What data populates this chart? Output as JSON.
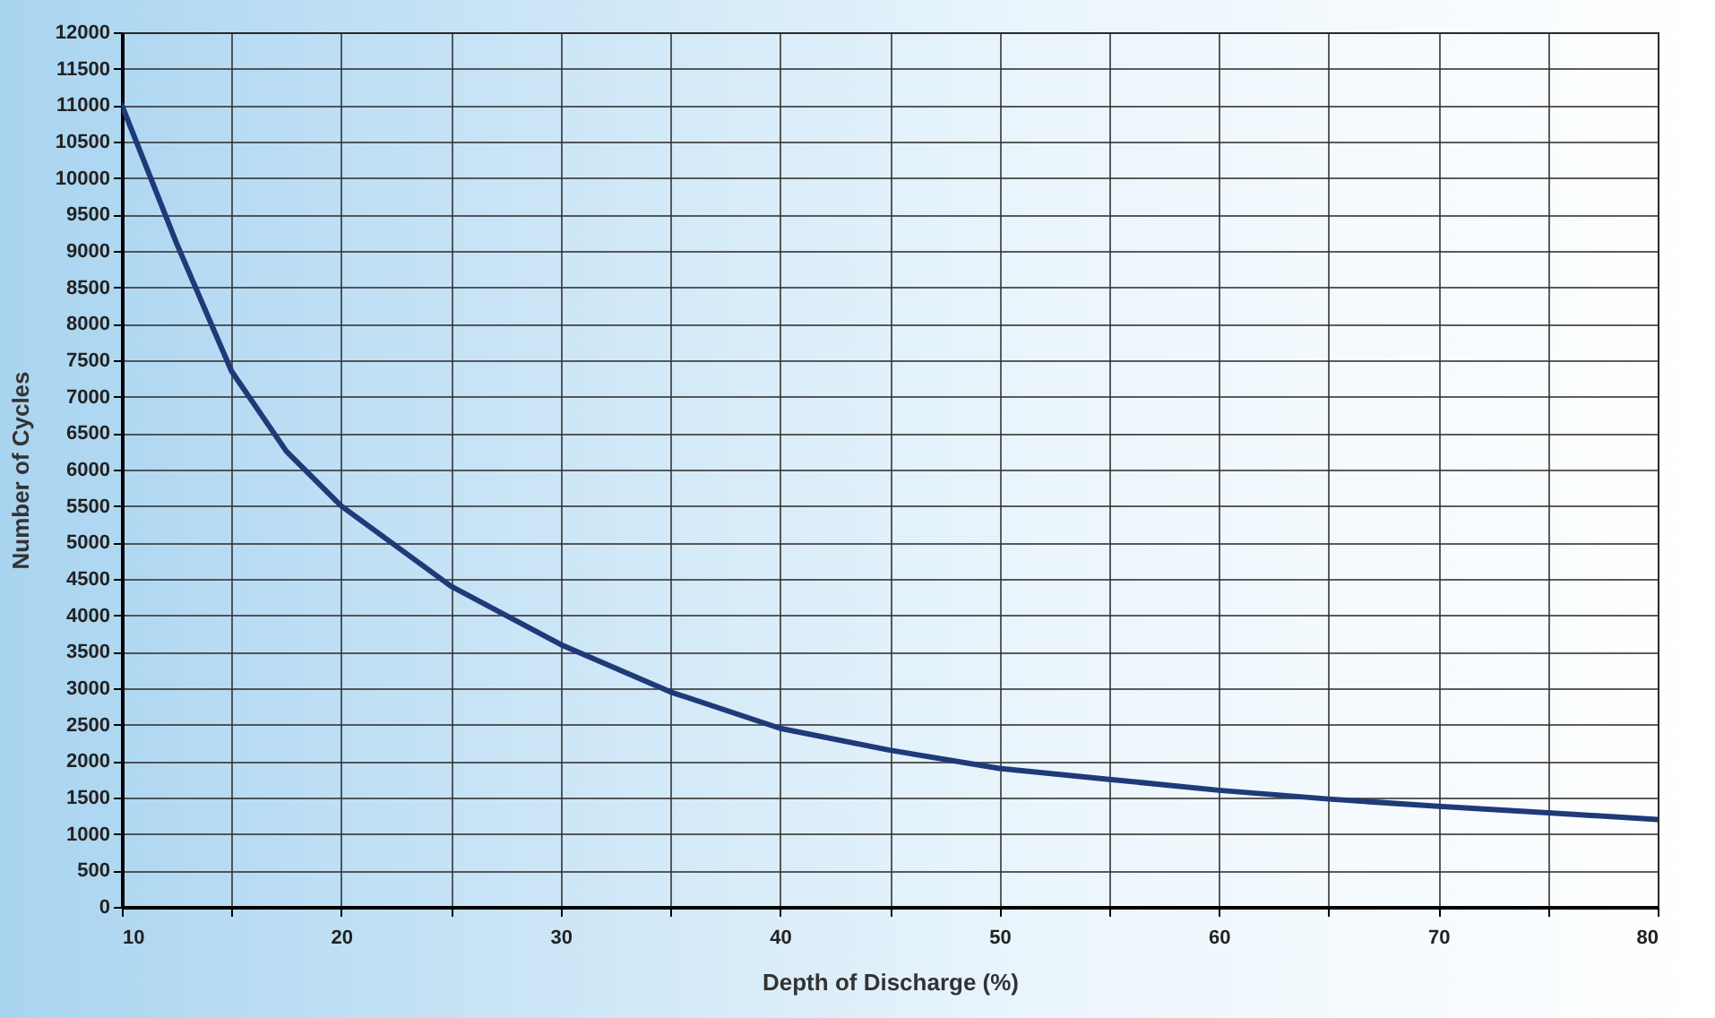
{
  "chart_data": {
    "type": "line",
    "xlabel": "Depth of Discharge (%)",
    "ylabel": "Number of Cycles",
    "x": [
      10,
      12.5,
      15,
      17.5,
      20,
      25,
      30,
      35,
      40,
      45,
      50,
      55,
      60,
      65,
      70,
      75,
      80
    ],
    "series": [
      {
        "color": "#1f3a78",
        "values": [
          11000,
          9100,
          7350,
          6250,
          5500,
          4400,
          3600,
          2950,
          2450,
          2150,
          1900,
          1750,
          1600,
          1480,
          1380,
          1290,
          1200
        ]
      }
    ],
    "xlim": [
      10,
      80
    ],
    "xticks": [
      10,
      {
        "value": 15,
        "label": null
      },
      20,
      {
        "value": 25,
        "label": null
      },
      30,
      {
        "value": 35,
        "label": null
      },
      40,
      {
        "value": 45,
        "label": null
      },
      50,
      {
        "value": 55,
        "label": null
      },
      60,
      {
        "value": 65,
        "label": null
      },
      70,
      {
        "value": 75,
        "label": null
      },
      80
    ],
    "ylim": [
      0,
      12000
    ],
    "yticks": [
      0,
      500,
      1000,
      1500,
      2000,
      2500,
      3000,
      3500,
      4000,
      4500,
      5000,
      5500,
      6000,
      6500,
      7000,
      7500,
      8000,
      8500,
      9000,
      9500,
      10000,
      10500,
      11000,
      11500,
      12000
    ],
    "grid": true,
    "line_style": "solid",
    "marker": "none"
  }
}
